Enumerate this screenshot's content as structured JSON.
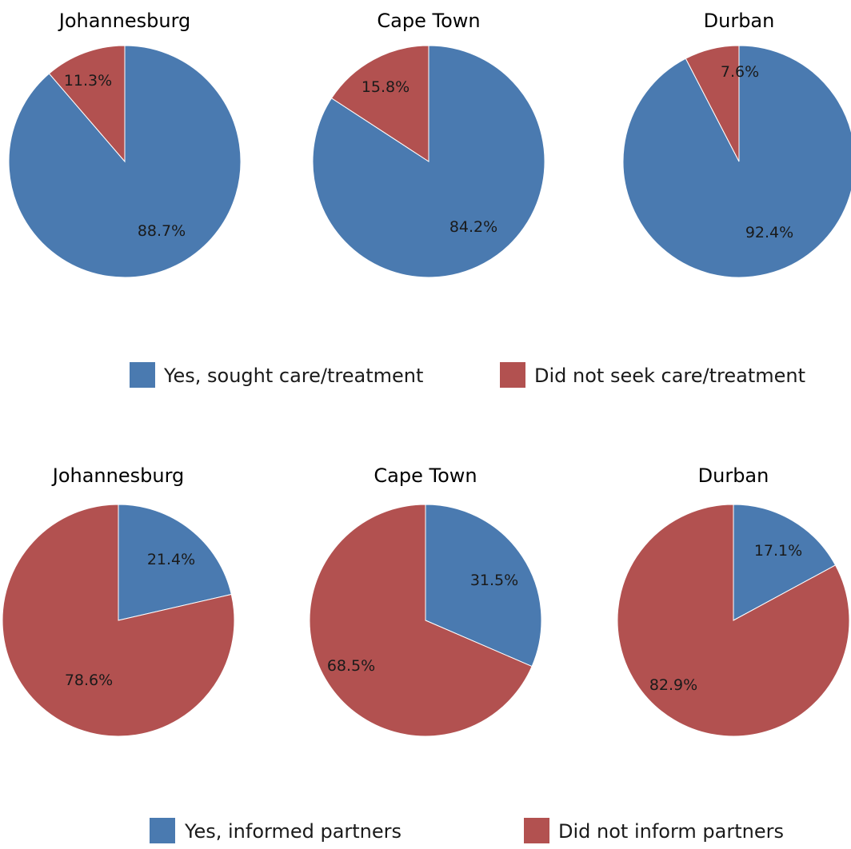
{
  "colors": {
    "blue": "#4a7ab0",
    "red": "#b25150"
  },
  "chart_data": [
    {
      "type": "pie",
      "title": "Johannesburg",
      "labels": [
        "Yes, sought care/treatment",
        "Did not seek care/treatment"
      ],
      "values": [
        88.7,
        11.3
      ],
      "value_labels": [
        "88.7%",
        "11.3%"
      ]
    },
    {
      "type": "pie",
      "title": "Cape Town",
      "labels": [
        "Yes, sought care/treatment",
        "Did not seek care/treatment"
      ],
      "values": [
        84.2,
        15.8
      ],
      "value_labels": [
        "84.2%",
        "15.8%"
      ]
    },
    {
      "type": "pie",
      "title": "Durban",
      "labels": [
        "Yes, sought care/treatment",
        "Did not seek care/treatment"
      ],
      "values": [
        92.4,
        7.6
      ],
      "value_labels": [
        "92.4%",
        "7.6%"
      ]
    },
    {
      "type": "pie",
      "title": "Johannesburg",
      "labels": [
        "Yes, informed partners",
        "Did not inform partners"
      ],
      "values": [
        21.4,
        78.6
      ],
      "value_labels": [
        "21.4%",
        "78.6%"
      ]
    },
    {
      "type": "pie",
      "title": "Cape Town",
      "labels": [
        "Yes, informed partners",
        "Did not inform partners"
      ],
      "values": [
        31.5,
        68.5
      ],
      "value_labels": [
        "31.5%",
        "68.5%"
      ]
    },
    {
      "type": "pie",
      "title": "Durban",
      "labels": [
        "Yes, informed partners",
        "Did not inform partners"
      ],
      "values": [
        17.1,
        82.9
      ],
      "value_labels": [
        "17.1%",
        "82.9%"
      ]
    }
  ],
  "legends": [
    {
      "items": [
        "Yes, sought care/treatment",
        "Did not seek care/treatment"
      ]
    },
    {
      "items": [
        "Yes, informed partners",
        "Did not inform partners"
      ]
    }
  ]
}
